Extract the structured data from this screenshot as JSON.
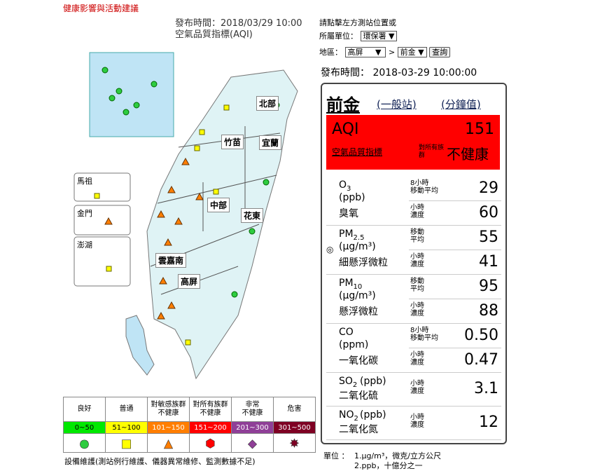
{
  "header": {
    "health_link": "健康影響與活動建議",
    "publish_time": "發布時間：2018/03/29 10:00",
    "map_title": "空氣品質指標(AQI)"
  },
  "query": {
    "hint": "請點擊左方測站位置或",
    "unit_label": "所屬單位：",
    "unit_value": "環保署",
    "area_label": "地區：",
    "area_value": "高屏",
    "sep": ">",
    "station_value": "前金",
    "button": "查詢",
    "publish_time": "發布時間： 2018-03-29 10:00:00"
  },
  "map": {
    "regions": [
      "北部",
      "竹苗",
      "宜蘭",
      "中部",
      "花東",
      "雲嘉南",
      "高屏"
    ],
    "islands": [
      "馬祖",
      "金門",
      "澎湖"
    ]
  },
  "station": {
    "name": "前金",
    "type": "(一般站)",
    "minute": "(分鐘值)",
    "aqi_label": "AQI",
    "aqi_value": "151",
    "aqi_link": "空氣品質指標",
    "group": "對所有族群",
    "status": "不健康",
    "pollutants": [
      {
        "name": "O",
        "sub": "3",
        "unit": "(ppb)",
        "cn": "臭氧",
        "readings": [
          {
            "label": [
              "8小時",
              "移動平均"
            ],
            "value": "29"
          },
          {
            "label": [
              "小時",
              "濃度"
            ],
            "value": "60"
          }
        ]
      },
      {
        "name": "PM",
        "sub": "2.5",
        "unit": "(μg/m³)",
        "cn": "細懸浮微粒",
        "readings": [
          {
            "label": [
              "移動",
              "平均"
            ],
            "value": "55"
          },
          {
            "label": [
              "小時",
              "濃度"
            ],
            "value": "41"
          }
        ]
      },
      {
        "name": "PM",
        "sub": "10",
        "unit": "(μg/m³)",
        "cn": "懸浮微粒",
        "readings": [
          {
            "label": [
              "移動",
              "平均"
            ],
            "value": "95"
          },
          {
            "label": [
              "小時",
              "濃度"
            ],
            "value": "88"
          }
        ]
      },
      {
        "name": "CO",
        "sub": "",
        "unit": "(ppm)",
        "cn": "一氧化碳",
        "readings": [
          {
            "label": [
              "8小時",
              "移動平均"
            ],
            "value": "0.50"
          },
          {
            "label": [
              "小時",
              "濃度"
            ],
            "value": "0.47"
          }
        ]
      },
      {
        "name": "SO",
        "sub": "2",
        "unit": "(ppb)",
        "cn": "二氧化硫",
        "readings": [
          {
            "label": [
              "小時",
              "濃度"
            ],
            "value": "3.1"
          }
        ]
      },
      {
        "name": "NO",
        "sub": "2",
        "unit": "(ppb)",
        "cn": "二氧化氮",
        "readings": [
          {
            "label": [
              "小時",
              "濃度"
            ],
            "value": "12"
          }
        ]
      }
    ]
  },
  "legend": {
    "levels": [
      {
        "name": [
          "良好"
        ],
        "range": "0~50",
        "color": "#00e800",
        "text": "#000"
      },
      {
        "name": [
          "普通"
        ],
        "range": "51~100",
        "color": "#ffff00",
        "text": "#000"
      },
      {
        "name": [
          "對敏感族群",
          "不健康"
        ],
        "range": "101~150",
        "color": "#ff7e00",
        "text": "#fff"
      },
      {
        "name": [
          "對所有族群",
          "不健康"
        ],
        "range": "151~200",
        "color": "#ff0000",
        "text": "#fff"
      },
      {
        "name": [
          "非常",
          "不健康"
        ],
        "range": "201~300",
        "color": "#8f3f97",
        "text": "#fff"
      },
      {
        "name": [
          "危害"
        ],
        "range": "301~500",
        "color": "#7e0023",
        "text": "#fff"
      }
    ],
    "maintenance": "設備維護(測站例行維護、儀器異常維修、監測數據不足)"
  },
  "footnote": {
    "label": "單位 ：",
    "lines": [
      "1.μg/m³，微克/立方公尺",
      "2.ppb，十億分之一"
    ]
  }
}
